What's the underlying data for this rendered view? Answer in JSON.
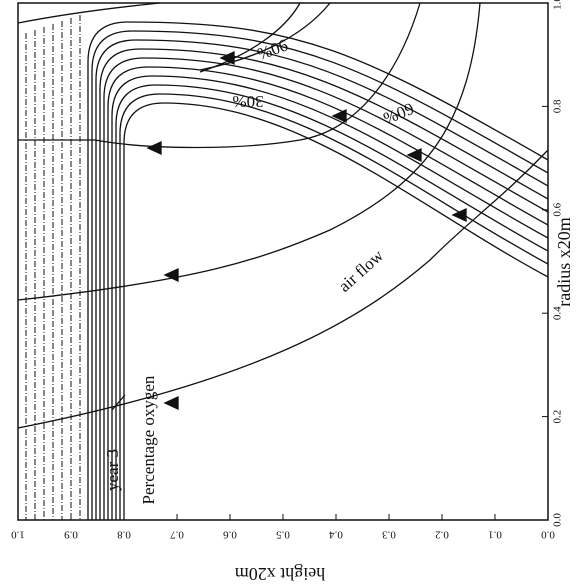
{
  "chart_data": {
    "type": "contour",
    "xlabel": "height x20m",
    "ylabel": "radius x20m",
    "xlim": [
      1.0,
      0.0
    ],
    "xticks": [
      {
        "value": 1.0,
        "label": "1.0"
      },
      0.9,
      0.8,
      0.7,
      0.6,
      0.5,
      0.4,
      0.3,
      0.2,
      0.1,
      {
        "value": 0.0,
        "label": "0.0"
      }
    ],
    "ylim": [
      0.0,
      1.0
    ],
    "yticks": [
      {
        "value": 0.0,
        "label": "0.0"
      },
      0.2,
      0.4,
      0.6,
      0.8,
      {
        "value": 1.0,
        "label": "1.0"
      }
    ],
    "contour_labels": [
      "90%",
      "60%",
      "30%"
    ],
    "annotations": [
      "air flow",
      "Percentage oxygen",
      "year 3"
    ]
  }
}
